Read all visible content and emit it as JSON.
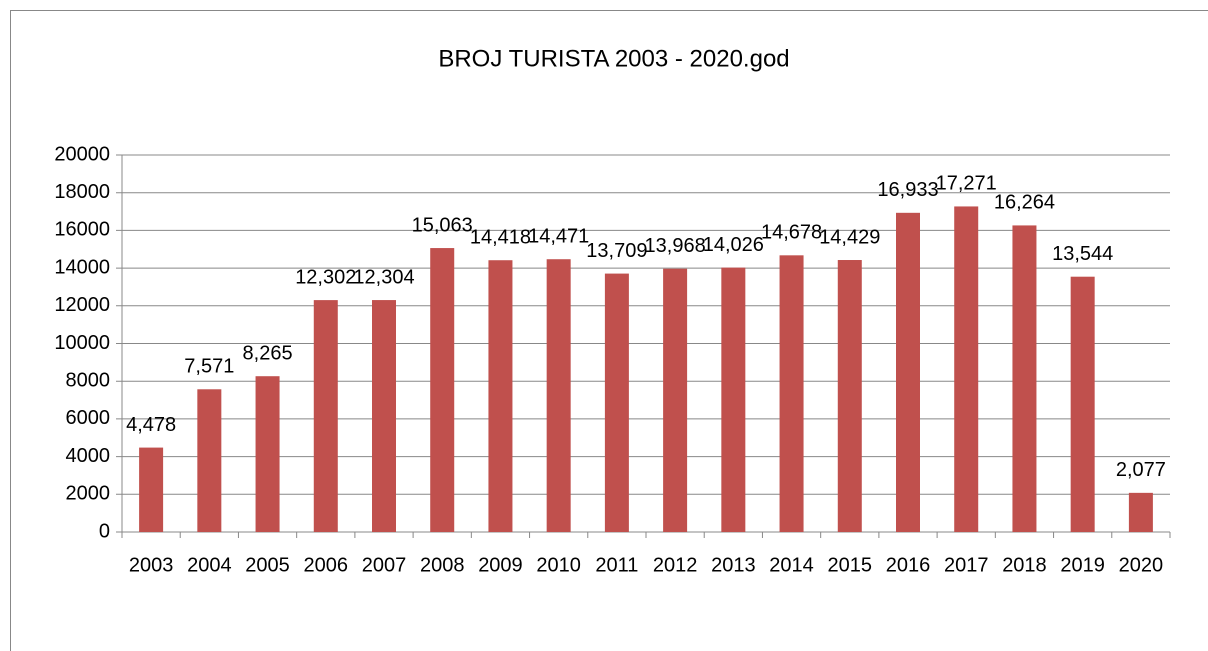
{
  "chart_data": {
    "type": "bar",
    "title": "BROJ TURISTA  2003 - 2020.god",
    "categories": [
      "2003",
      "2004",
      "2005",
      "2006",
      "2007",
      "2008",
      "2009",
      "2010",
      "2011",
      "2012",
      "2013",
      "2014",
      "2015",
      "2016",
      "2017",
      "2018",
      "2019",
      "2020"
    ],
    "values": [
      4478,
      7571,
      8265,
      12302,
      12304,
      15063,
      14418,
      14471,
      13709,
      13968,
      14026,
      14678,
      14429,
      16933,
      17271,
      16264,
      13544,
      2077
    ],
    "value_labels": [
      "4,478",
      "7,571",
      "8,265",
      "12,302",
      "12,304",
      "15,063",
      "14,418",
      "14,471",
      "13,709",
      "13,968",
      "14,026",
      "14,678",
      "14,429",
      "16,933",
      "17,271",
      "16,264",
      "13,544",
      "2,077"
    ],
    "color": "#c0504d",
    "ylim": [
      0,
      20000
    ],
    "yticks": [
      0,
      2000,
      4000,
      6000,
      8000,
      10000,
      12000,
      14000,
      16000,
      18000,
      20000
    ],
    "grid": true
  }
}
